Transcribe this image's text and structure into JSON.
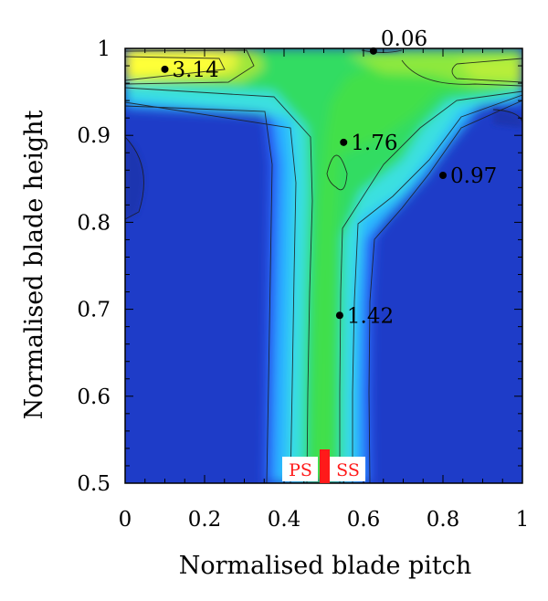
{
  "chart_data": {
    "type": "heatmap",
    "title": "",
    "xlabel": "Normalised blade pitch",
    "ylabel": "Normalised blade height",
    "xlim": [
      0,
      1
    ],
    "ylim": [
      0.5,
      1
    ],
    "x_ticks": [
      "0",
      "0.2",
      "0.4",
      "0.6",
      "0.8",
      "1"
    ],
    "y_ticks": [
      "0.5",
      "0.6",
      "0.7",
      "0.8",
      "0.9",
      "1"
    ],
    "colormap": [
      "#1e3cc8",
      "#2a6cff",
      "#2ab8ff",
      "#3ae0e0",
      "#32dc62",
      "#9ee63a",
      "#ffff38"
    ],
    "annotations": [
      {
        "x": 0.1,
        "y": 0.976,
        "label": "3.14"
      },
      {
        "x": 0.625,
        "y": 0.997,
        "label": "0.06"
      },
      {
        "x": 0.55,
        "y": 0.892,
        "label": "1.76"
      },
      {
        "x": 0.8,
        "y": 0.854,
        "label": "0.97"
      },
      {
        "x": 0.54,
        "y": 0.693,
        "label": "1.42"
      }
    ],
    "markers": {
      "left": "PS",
      "right": "SS",
      "position": 0.5,
      "color": "#ff1a1a"
    }
  }
}
